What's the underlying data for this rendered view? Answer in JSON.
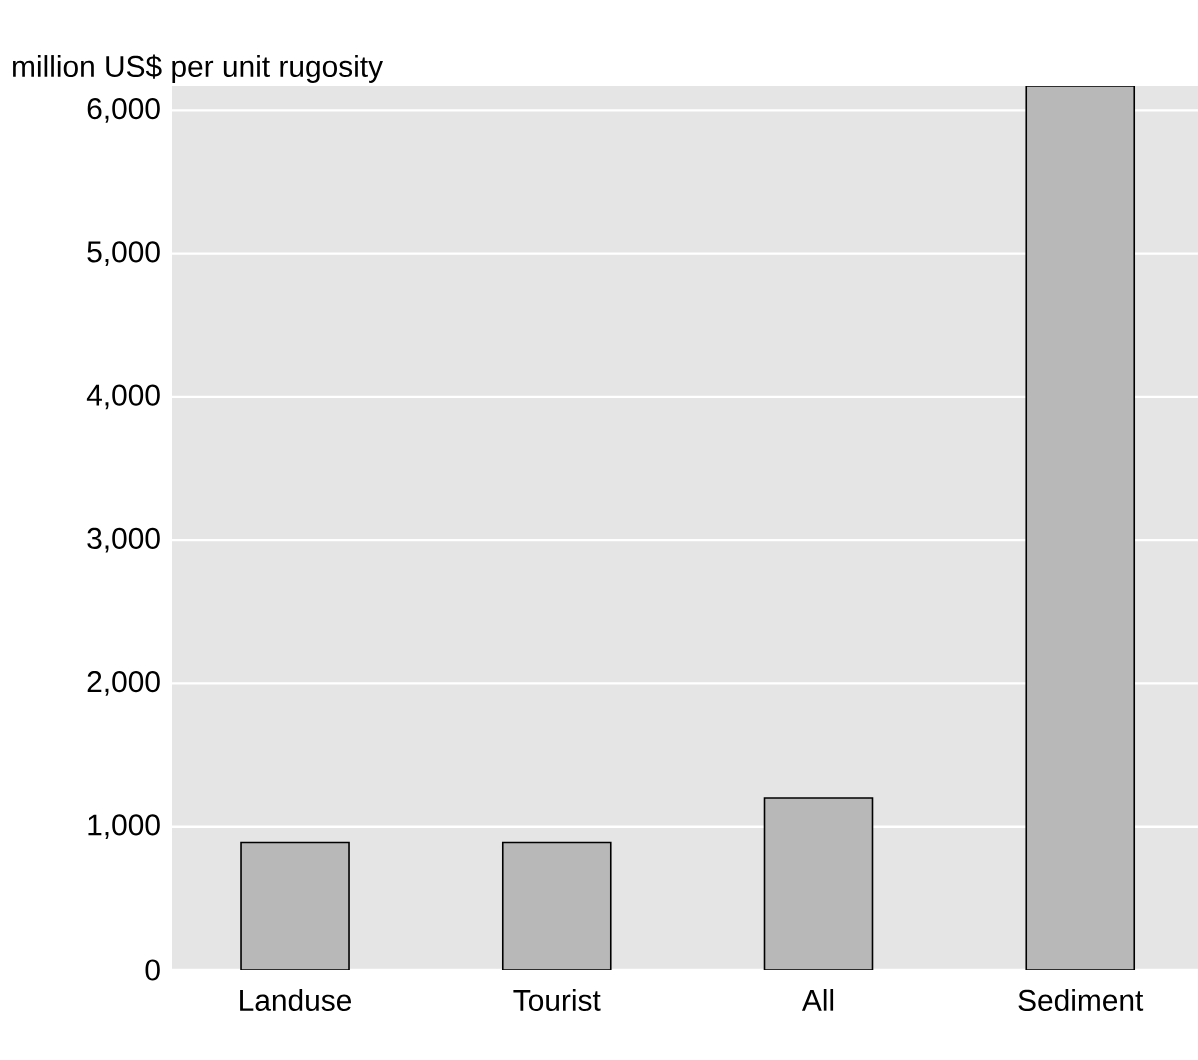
{
  "chart_data": {
    "type": "bar",
    "ylabel": "million US$ per unit rugosity",
    "categories": [
      "Landuse",
      "Tourist",
      "All",
      "Sediment"
    ],
    "values": [
      890,
      890,
      1200,
      6170
    ],
    "color": "#b8b8b8",
    "ylim": [
      0,
      6170
    ],
    "yticks": [
      0,
      {
        "value": 1000,
        "label": "1,000"
      },
      {
        "value": 2000,
        "label": "2,000"
      },
      {
        "value": 3000,
        "label": "3,000"
      },
      {
        "value": 4000,
        "label": "4,000"
      },
      {
        "value": 5000,
        "label": "5,000"
      },
      {
        "value": 6000,
        "label": "6,000"
      }
    ],
    "grid": "y"
  }
}
